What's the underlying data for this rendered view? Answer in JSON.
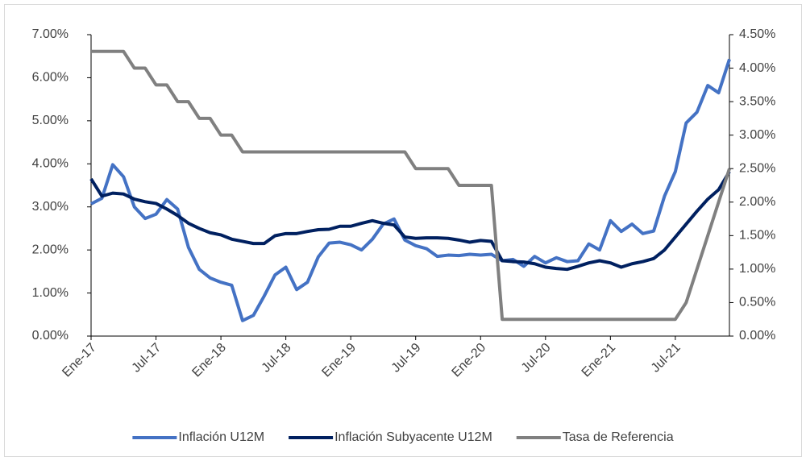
{
  "chart_data": {
    "type": "line",
    "categories": [
      "Ene-17",
      null,
      null,
      null,
      null,
      null,
      "Jul-17",
      null,
      null,
      null,
      null,
      null,
      "Ene-18",
      null,
      null,
      null,
      null,
      null,
      "Jul-18",
      null,
      null,
      null,
      null,
      null,
      "Ene-19",
      null,
      null,
      null,
      null,
      null,
      "Jul-19",
      null,
      null,
      null,
      null,
      null,
      "Ene-20",
      null,
      null,
      null,
      null,
      null,
      "Jul-20",
      null,
      null,
      null,
      null,
      null,
      "Ene-21",
      null,
      null,
      null,
      null,
      null,
      "Jul-21",
      null,
      null,
      null,
      null,
      null
    ],
    "series": [
      {
        "name": "Inflación U12M",
        "color": "#4472c4",
        "values": [
          3.07,
          3.2,
          3.98,
          3.7,
          3.0,
          2.73,
          2.83,
          3.17,
          2.95,
          2.06,
          1.55,
          1.35,
          1.25,
          1.18,
          0.36,
          0.48,
          0.93,
          1.42,
          1.6,
          1.08,
          1.25,
          1.84,
          2.16,
          2.18,
          2.12,
          2.0,
          2.25,
          2.6,
          2.72,
          2.23,
          2.1,
          2.03,
          1.85,
          1.88,
          1.87,
          1.9,
          1.88,
          1.9,
          1.75,
          1.78,
          1.62,
          1.85,
          1.7,
          1.82,
          1.73,
          1.75,
          2.14,
          2.0,
          2.68,
          2.43,
          2.6,
          2.38,
          2.44,
          3.25,
          3.82,
          4.95,
          5.2,
          5.82,
          5.65,
          6.43
        ]
      },
      {
        "name": "Inflación Subyacente U12M",
        "color": "#002060",
        "values": [
          3.65,
          3.25,
          3.32,
          3.3,
          3.18,
          3.12,
          3.08,
          2.95,
          2.8,
          2.62,
          2.5,
          2.4,
          2.35,
          2.25,
          2.2,
          2.15,
          2.15,
          2.33,
          2.38,
          2.38,
          2.43,
          2.47,
          2.48,
          2.55,
          2.55,
          2.62,
          2.68,
          2.62,
          2.58,
          2.3,
          2.27,
          2.28,
          2.28,
          2.27,
          2.23,
          2.18,
          2.22,
          2.2,
          1.75,
          1.73,
          1.72,
          1.68,
          1.6,
          1.57,
          1.55,
          1.62,
          1.7,
          1.75,
          1.7,
          1.6,
          1.68,
          1.73,
          1.8,
          2.0,
          2.3,
          2.6,
          2.9,
          3.18,
          3.4,
          3.82
        ]
      },
      {
        "name": "Tasa de Referencia",
        "color": "#808080",
        "axis": "y2",
        "values": [
          4.25,
          4.25,
          4.25,
          4.25,
          4.0,
          4.0,
          3.75,
          3.75,
          3.5,
          3.5,
          3.25,
          3.25,
          3.0,
          3.0,
          2.75,
          2.75,
          2.75,
          2.75,
          2.75,
          2.75,
          2.75,
          2.75,
          2.75,
          2.75,
          2.75,
          2.75,
          2.75,
          2.75,
          2.75,
          2.75,
          2.5,
          2.5,
          2.5,
          2.5,
          2.25,
          2.25,
          2.25,
          2.25,
          0.25,
          0.25,
          0.25,
          0.25,
          0.25,
          0.25,
          0.25,
          0.25,
          0.25,
          0.25,
          0.25,
          0.25,
          0.25,
          0.25,
          0.25,
          0.25,
          0.25,
          0.5,
          1.0,
          1.5,
          2.0,
          2.5
        ]
      }
    ],
    "ylim": [
      0,
      7
    ],
    "yticks": [
      {
        "value": 0,
        "label": "0.00%"
      },
      {
        "value": 1,
        "label": "1.00%"
      },
      {
        "value": 2,
        "label": "2.00%"
      },
      {
        "value": 3,
        "label": "3.00%"
      },
      {
        "value": 4,
        "label": "4.00%"
      },
      {
        "value": 5,
        "label": "5.00%"
      },
      {
        "value": 6,
        "label": "6.00%"
      },
      {
        "value": 7,
        "label": "7.00%"
      }
    ],
    "y2lim": [
      0,
      4.5
    ],
    "y2ticks": [
      {
        "value": 0,
        "label": "0.00%"
      },
      {
        "value": 0.5,
        "label": "0.50%"
      },
      {
        "value": 1,
        "label": "1.00%"
      },
      {
        "value": 1.5,
        "label": "1.50%"
      },
      {
        "value": 2,
        "label": "2.00%"
      },
      {
        "value": 2.5,
        "label": "2.50%"
      },
      {
        "value": 3,
        "label": "3.00%"
      },
      {
        "value": 3.5,
        "label": "3.50%"
      },
      {
        "value": 4,
        "label": "4.00%"
      },
      {
        "value": 4.5,
        "label": "4.50%"
      }
    ],
    "grid": false,
    "legend": "bottom"
  }
}
